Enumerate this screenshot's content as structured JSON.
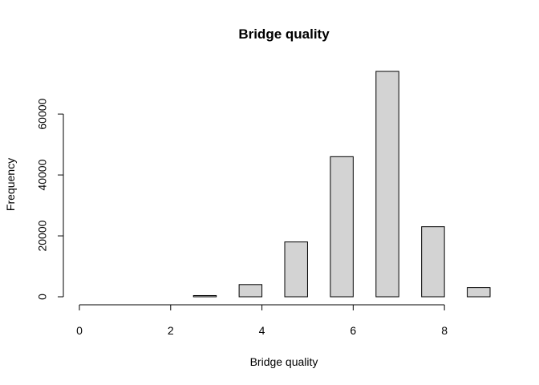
{
  "chart_data": {
    "type": "bar",
    "title": "Bridge quality",
    "xlabel": "Bridge quality",
    "ylabel": "Frequency",
    "xlim": [
      0,
      9
    ],
    "ylim": [
      0,
      74000
    ],
    "bins": [
      {
        "x_start": 0.0,
        "x_end": 0.5,
        "value": 0
      },
      {
        "x_start": 0.5,
        "x_end": 1.0,
        "value": 0
      },
      {
        "x_start": 1.0,
        "x_end": 1.5,
        "value": 0
      },
      {
        "x_start": 1.5,
        "x_end": 2.0,
        "value": 0
      },
      {
        "x_start": 2.0,
        "x_end": 2.5,
        "value": 0
      },
      {
        "x_start": 2.5,
        "x_end": 3.0,
        "value": 400
      },
      {
        "x_start": 3.0,
        "x_end": 3.5,
        "value": 0
      },
      {
        "x_start": 3.5,
        "x_end": 4.0,
        "value": 4000
      },
      {
        "x_start": 4.0,
        "x_end": 4.5,
        "value": 0
      },
      {
        "x_start": 4.5,
        "x_end": 5.0,
        "value": 18000
      },
      {
        "x_start": 5.0,
        "x_end": 5.5,
        "value": 0
      },
      {
        "x_start": 5.5,
        "x_end": 6.0,
        "value": 46000
      },
      {
        "x_start": 6.0,
        "x_end": 6.5,
        "value": 0
      },
      {
        "x_start": 6.5,
        "x_end": 7.0,
        "value": 74000
      },
      {
        "x_start": 7.0,
        "x_end": 7.5,
        "value": 0
      },
      {
        "x_start": 7.5,
        "x_end": 8.0,
        "value": 23000
      },
      {
        "x_start": 8.0,
        "x_end": 8.5,
        "value": 0
      },
      {
        "x_start": 8.5,
        "x_end": 9.0,
        "value": 3000
      }
    ],
    "x_ticks": [
      0,
      2,
      4,
      6,
      8
    ],
    "y_ticks": [
      0,
      20000,
      40000,
      60000
    ],
    "grid": false,
    "bar_fill": "#d3d3d3",
    "bar_stroke": "#000000"
  }
}
